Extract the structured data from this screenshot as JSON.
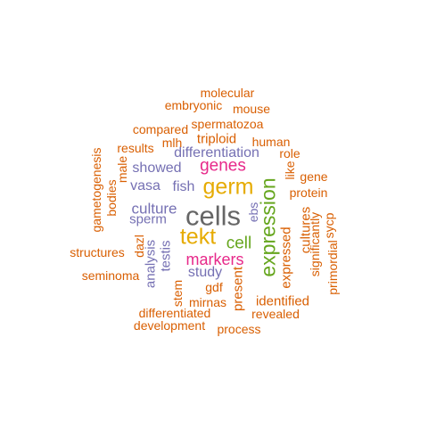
{
  "palette": {
    "orange": "#d95f02",
    "purple": "#7570b3",
    "magenta": "#e7298a",
    "green": "#66a61e",
    "gold": "#e6ab02",
    "gray": "#666666"
  },
  "words": [
    {
      "text": "cells",
      "color": "gray",
      "vertical": false
    },
    {
      "text": "germ",
      "color": "gold",
      "vertical": false
    },
    {
      "text": "expression",
      "color": "green",
      "vertical": true
    },
    {
      "text": "tekt",
      "color": "gold",
      "vertical": false
    },
    {
      "text": "genes",
      "color": "magenta",
      "vertical": false
    },
    {
      "text": "markers",
      "color": "magenta",
      "vertical": false
    },
    {
      "text": "cell",
      "color": "green",
      "vertical": false
    },
    {
      "text": "differentiation",
      "color": "purple",
      "vertical": false
    },
    {
      "text": "culture",
      "color": "purple",
      "vertical": false
    },
    {
      "text": "fish",
      "color": "purple",
      "vertical": false
    },
    {
      "text": "showed",
      "color": "purple",
      "vertical": false
    },
    {
      "text": "vasa",
      "color": "purple",
      "vertical": false
    },
    {
      "text": "sperm",
      "color": "purple",
      "vertical": false
    },
    {
      "text": "study",
      "color": "purple",
      "vertical": false
    },
    {
      "text": "testis",
      "color": "purple",
      "vertical": true
    },
    {
      "text": "analysis",
      "color": "purple",
      "vertical": true
    },
    {
      "text": "ebs",
      "color": "purple",
      "vertical": true
    },
    {
      "text": "stem",
      "color": "orange",
      "vertical": true
    },
    {
      "text": "molecular",
      "color": "orange",
      "vertical": false
    },
    {
      "text": "embryonic",
      "color": "orange",
      "vertical": false
    },
    {
      "text": "mouse",
      "color": "orange",
      "vertical": false
    },
    {
      "text": "spermatozoa",
      "color": "orange",
      "vertical": false
    },
    {
      "text": "compared",
      "color": "orange",
      "vertical": false
    },
    {
      "text": "triploid",
      "color": "orange",
      "vertical": false
    },
    {
      "text": "mlh",
      "color": "orange",
      "vertical": false
    },
    {
      "text": "human",
      "color": "orange",
      "vertical": false
    },
    {
      "text": "results",
      "color": "orange",
      "vertical": false
    },
    {
      "text": "role",
      "color": "orange",
      "vertical": false
    },
    {
      "text": "gene",
      "color": "orange",
      "vertical": false
    },
    {
      "text": "protein",
      "color": "orange",
      "vertical": false
    },
    {
      "text": "like",
      "color": "orange",
      "vertical": true
    },
    {
      "text": "male",
      "color": "orange",
      "vertical": true
    },
    {
      "text": "bodies",
      "color": "orange",
      "vertical": true
    },
    {
      "text": "gametogenesis",
      "color": "orange",
      "vertical": true
    },
    {
      "text": "cultures",
      "color": "orange",
      "vertical": true
    },
    {
      "text": "significantly",
      "color": "orange",
      "vertical": true
    },
    {
      "text": "sycp",
      "color": "orange",
      "vertical": true
    },
    {
      "text": "primordial",
      "color": "orange",
      "vertical": true
    },
    {
      "text": "expressed",
      "color": "orange",
      "vertical": true
    },
    {
      "text": "dazl",
      "color": "orange",
      "vertical": true
    },
    {
      "text": "structures",
      "color": "orange",
      "vertical": false
    },
    {
      "text": "seminoma",
      "color": "orange",
      "vertical": false
    },
    {
      "text": "gdf",
      "color": "orange",
      "vertical": false
    },
    {
      "text": "present",
      "color": "orange",
      "vertical": true
    },
    {
      "text": "identified",
      "color": "orange",
      "vertical": false
    },
    {
      "text": "mirnas",
      "color": "orange",
      "vertical": false
    },
    {
      "text": "revealed",
      "color": "orange",
      "vertical": false
    },
    {
      "text": "differentiated",
      "color": "orange",
      "vertical": false
    },
    {
      "text": "development",
      "color": "orange",
      "vertical": false
    },
    {
      "text": "process",
      "color": "orange",
      "vertical": false
    }
  ]
}
